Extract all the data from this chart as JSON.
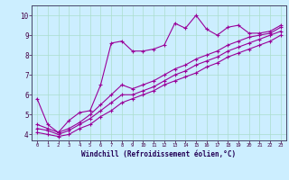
{
  "title": "",
  "xlabel": "Windchill (Refroidissement éolien,°C)",
  "ylabel": "",
  "bg_color": "#cceeff",
  "line_color": "#990099",
  "x_ticks": [
    0,
    1,
    2,
    3,
    4,
    5,
    6,
    7,
    8,
    9,
    10,
    11,
    12,
    13,
    14,
    15,
    16,
    17,
    18,
    19,
    20,
    21,
    22,
    23
  ],
  "y_ticks": [
    4,
    5,
    6,
    7,
    8,
    9,
    10
  ],
  "ylim": [
    3.7,
    10.5
  ],
  "xlim": [
    -0.5,
    23.5
  ],
  "series1_x": [
    0,
    1,
    2,
    3,
    4,
    5,
    6,
    7,
    8,
    9,
    10,
    11,
    12,
    13,
    14,
    15,
    16,
    17,
    18,
    19,
    20,
    21,
    22,
    23
  ],
  "series1_y": [
    5.8,
    4.5,
    4.1,
    4.7,
    5.1,
    5.2,
    6.5,
    8.6,
    8.7,
    8.2,
    8.2,
    8.3,
    8.5,
    9.6,
    9.35,
    10.0,
    9.3,
    9.0,
    9.4,
    9.5,
    9.1,
    9.1,
    9.2,
    9.5
  ],
  "series2_x": [
    0,
    1,
    2,
    3,
    4,
    5,
    6,
    7,
    8,
    9,
    10,
    11,
    12,
    13,
    14,
    15,
    16,
    17,
    18,
    19,
    20,
    21,
    22,
    23
  ],
  "series2_y": [
    4.5,
    4.3,
    4.1,
    4.3,
    4.6,
    5.0,
    5.5,
    6.0,
    6.5,
    6.3,
    6.5,
    6.7,
    7.0,
    7.3,
    7.5,
    7.8,
    8.0,
    8.2,
    8.5,
    8.7,
    8.9,
    9.0,
    9.1,
    9.4
  ],
  "series3_x": [
    0,
    1,
    2,
    3,
    4,
    5,
    6,
    7,
    8,
    9,
    10,
    11,
    12,
    13,
    14,
    15,
    16,
    17,
    18,
    19,
    20,
    21,
    22,
    23
  ],
  "series3_y": [
    4.3,
    4.2,
    4.0,
    4.2,
    4.5,
    4.8,
    5.2,
    5.6,
    6.0,
    6.0,
    6.2,
    6.4,
    6.7,
    7.0,
    7.2,
    7.5,
    7.7,
    7.9,
    8.2,
    8.4,
    8.6,
    8.8,
    9.0,
    9.2
  ],
  "series4_x": [
    0,
    1,
    2,
    3,
    4,
    5,
    6,
    7,
    8,
    9,
    10,
    11,
    12,
    13,
    14,
    15,
    16,
    17,
    18,
    19,
    20,
    21,
    22,
    23
  ],
  "series4_y": [
    4.1,
    4.0,
    3.9,
    4.0,
    4.3,
    4.5,
    4.9,
    5.2,
    5.6,
    5.8,
    6.0,
    6.2,
    6.5,
    6.7,
    6.9,
    7.1,
    7.4,
    7.6,
    7.9,
    8.1,
    8.3,
    8.5,
    8.7,
    9.0
  ],
  "grid_color": "#aaddcc",
  "marker": "+"
}
